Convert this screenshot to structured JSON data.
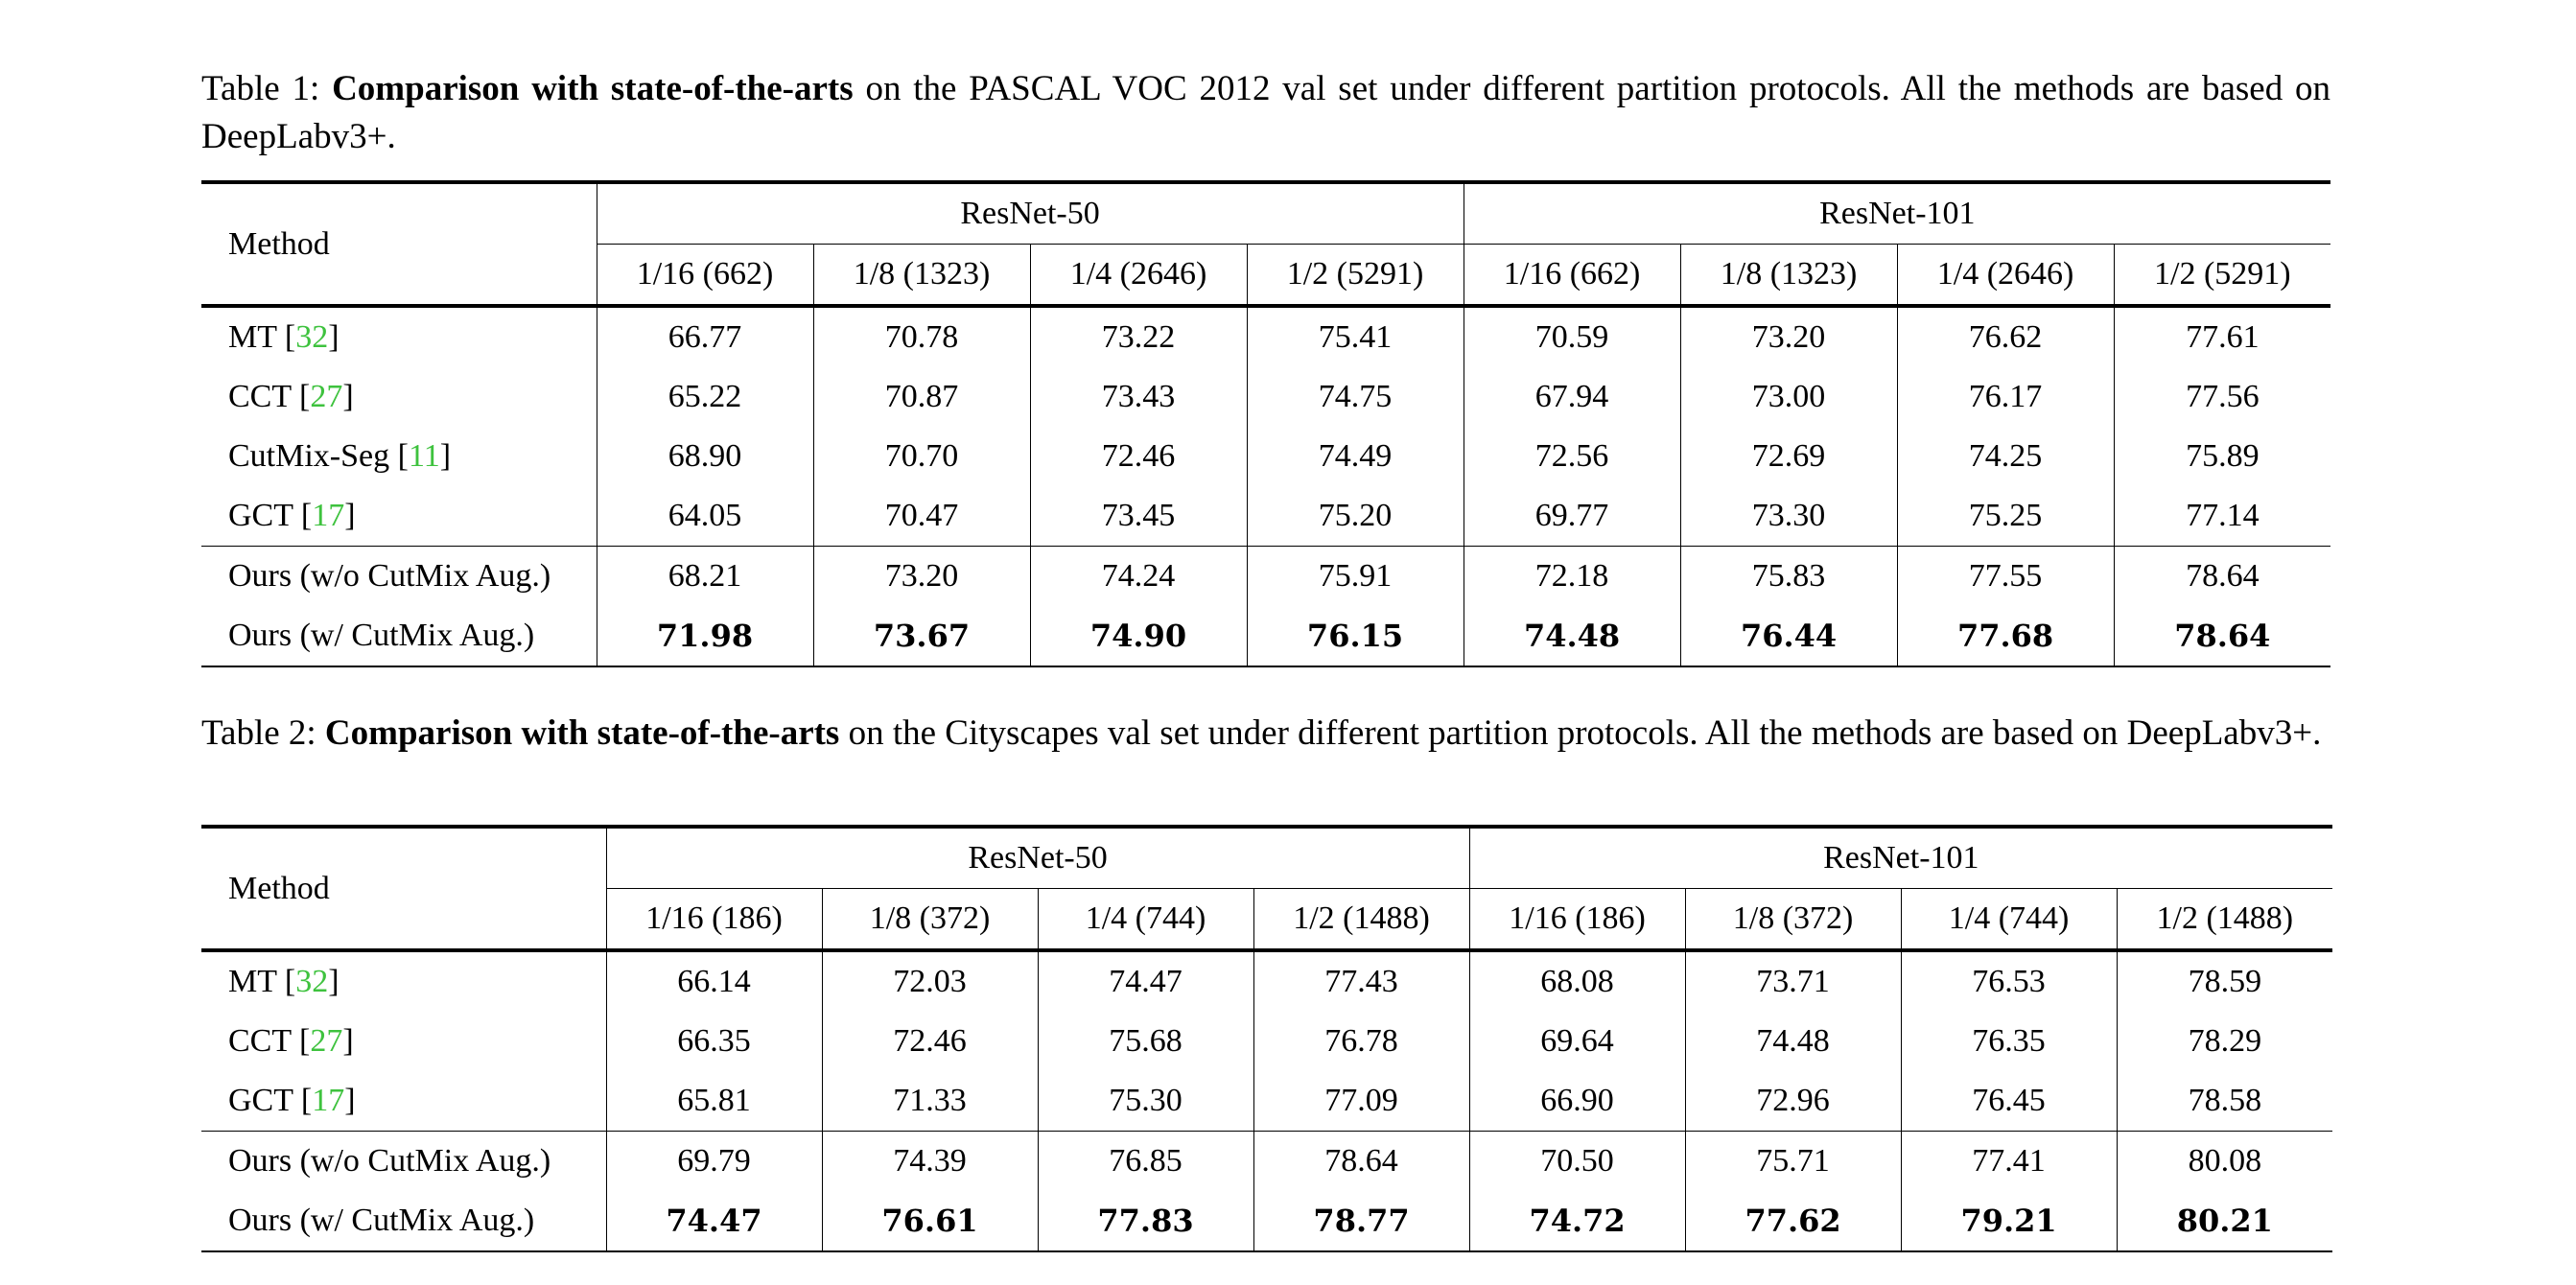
{
  "table1": {
    "caption_prefix": "Table 1:",
    "caption_bold": "Comparison with state-of-the-arts",
    "caption_rest": "on the PASCAL VOC 2012 val set under different partition protocols. All the methods are based on DeepLabv3+.",
    "method_header": "Method",
    "groups": [
      "ResNet-50",
      "ResNet-101"
    ],
    "columns": [
      "1/16 (662)",
      "1/8 (1323)",
      "1/4 (2646)",
      "1/2 (5291)",
      "1/16 (662)",
      "1/8 (1323)",
      "1/4 (2646)",
      "1/2 (5291)"
    ],
    "rows": [
      {
        "name": "MT [",
        "ref": "32",
        "close": "]",
        "values": [
          "66.77",
          "70.78",
          "73.22",
          "75.41",
          "70.59",
          "73.20",
          "76.62",
          "77.61"
        ]
      },
      {
        "name": "CCT [",
        "ref": "27",
        "close": "]",
        "values": [
          "65.22",
          "70.87",
          "73.43",
          "74.75",
          "67.94",
          "73.00",
          "76.17",
          "77.56"
        ]
      },
      {
        "name": "CutMix-Seg [",
        "ref": "11",
        "close": "]",
        "values": [
          "68.90",
          "70.70",
          "72.46",
          "74.49",
          "72.56",
          "72.69",
          "74.25",
          "75.89"
        ]
      },
      {
        "name": "GCT [",
        "ref": "17",
        "close": "]",
        "values": [
          "64.05",
          "70.47",
          "73.45",
          "75.20",
          "69.77",
          "73.30",
          "75.25",
          "77.14"
        ]
      },
      {
        "name": "Ours (w/o CutMix Aug.)",
        "values": [
          "68.21",
          "73.20",
          "74.24",
          "75.91",
          "72.18",
          "75.83",
          "77.55",
          "78.64"
        ]
      },
      {
        "name": "Ours (w/ CutMix Aug.)",
        "values": [
          "71.98",
          "73.67",
          "74.90",
          "76.15",
          "74.48",
          "76.44",
          "77.68",
          "78.64"
        ]
      }
    ]
  },
  "table2": {
    "caption_prefix": "Table 2:",
    "caption_bold": "Comparison with state-of-the-arts",
    "caption_rest": "on the Cityscapes val set under different partition protocols. All the methods are based on DeepLabv3+.",
    "method_header": "Method",
    "groups": [
      "ResNet-50",
      "ResNet-101"
    ],
    "columns": [
      "1/16 (186)",
      "1/8 (372)",
      "1/4 (744)",
      "1/2 (1488)",
      "1/16 (186)",
      "1/8 (372)",
      "1/4 (744)",
      "1/2 (1488)"
    ],
    "rows": [
      {
        "name": "MT [",
        "ref": "32",
        "close": "]",
        "values": [
          "66.14",
          "72.03",
          "74.47",
          "77.43",
          "68.08",
          "73.71",
          "76.53",
          "78.59"
        ]
      },
      {
        "name": "CCT [",
        "ref": "27",
        "close": "]",
        "values": [
          "66.35",
          "72.46",
          "75.68",
          "76.78",
          "69.64",
          "74.48",
          "76.35",
          "78.29"
        ]
      },
      {
        "name": "GCT [",
        "ref": "17",
        "close": "]",
        "values": [
          "65.81",
          "71.33",
          "75.30",
          "77.09",
          "66.90",
          "72.96",
          "76.45",
          "78.58"
        ]
      },
      {
        "name": "Ours (w/o CutMix Aug.)",
        "values": [
          "69.79",
          "74.39",
          "76.85",
          "78.64",
          "70.50",
          "75.71",
          "77.41",
          "80.08"
        ]
      },
      {
        "name": "Ours (w/ CutMix Aug.)",
        "values": [
          "74.47",
          "76.61",
          "77.83",
          "78.77",
          "74.72",
          "77.62",
          "79.21",
          "80.21"
        ]
      }
    ]
  },
  "colors": {
    "reference_link": "#3ec23e"
  }
}
